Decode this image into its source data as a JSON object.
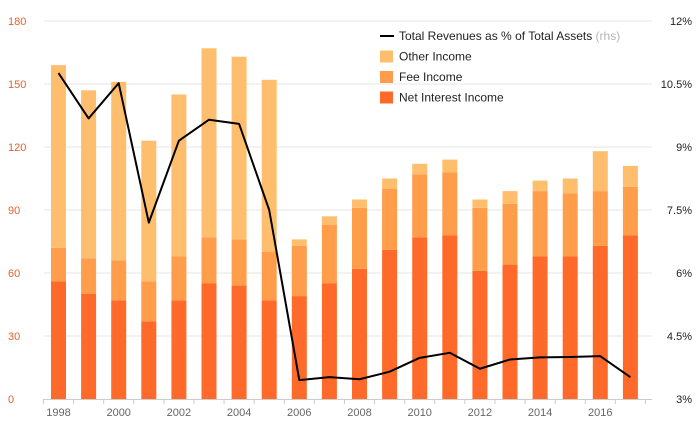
{
  "chart_data": {
    "type": "bar",
    "stacked": true,
    "x": [
      1998,
      1999,
      2000,
      2001,
      2002,
      2003,
      2004,
      2005,
      2006,
      2007,
      2008,
      2009,
      2010,
      2011,
      2012,
      2013,
      2014,
      2015,
      2016,
      2017
    ],
    "x_tick_labels": [
      "1998",
      "2000",
      "2002",
      "2004",
      "2006",
      "2008",
      "2010",
      "2012",
      "2014",
      "2016"
    ],
    "series": [
      {
        "name": "Net Interest Income",
        "type": "bar",
        "color": "#ff6a2b",
        "values": [
          56,
          50,
          47,
          37,
          47,
          55,
          54,
          47,
          49,
          55,
          62,
          71,
          77,
          78,
          61,
          64,
          68,
          68,
          73,
          78
        ]
      },
      {
        "name": "Fee Income",
        "type": "bar",
        "color": "#ff9d4a",
        "values": [
          16,
          17,
          19,
          19,
          21,
          22,
          22,
          23,
          24,
          28,
          29,
          29,
          30,
          30,
          30,
          29,
          31,
          30,
          26,
          23
        ]
      },
      {
        "name": "Other Income",
        "type": "bar",
        "color": "#ffbe6e",
        "values": [
          87,
          80,
          85,
          67,
          77,
          90,
          87,
          82,
          3,
          4,
          4,
          5,
          5,
          6,
          4,
          6,
          5,
          7,
          19,
          10
        ]
      },
      {
        "name": "Total Revenues as % of Total Assets",
        "type": "line",
        "axis": "right",
        "color": "#000000",
        "values": [
          10.76,
          9.68,
          10.52,
          7.2,
          9.15,
          9.65,
          9.55,
          7.5,
          3.45,
          3.52,
          3.47,
          3.65,
          3.98,
          4.1,
          3.72,
          3.94,
          3.99,
          4.0,
          4.02,
          3.52
        ]
      }
    ],
    "y_left": {
      "range": [
        0,
        180
      ],
      "ticks": [
        0,
        30,
        60,
        90,
        120,
        150,
        180
      ],
      "tick_labels": [
        "0",
        "30",
        "60",
        "90",
        "120",
        "150",
        "180"
      ]
    },
    "y_right": {
      "range": [
        3,
        12
      ],
      "ticks": [
        3,
        4.5,
        6,
        7.5,
        9,
        10.5,
        12
      ],
      "tick_labels": [
        "3%",
        "4.5%",
        "6%",
        "7.5%",
        "9%",
        "10.5%",
        "12%"
      ]
    },
    "legend": [
      {
        "label": "Total Revenues as % of Total Assets",
        "note": "(rhs)",
        "kind": "line",
        "color": "#000000"
      },
      {
        "label": "Other Income",
        "kind": "box",
        "color": "#ffbe6e"
      },
      {
        "label": "Fee Income",
        "kind": "box",
        "color": "#ff9d4a"
      },
      {
        "label": "Net Interest Income",
        "kind": "box",
        "color": "#ff6a2b"
      }
    ],
    "legend_position": "top-right",
    "title": "",
    "xlabel": "",
    "ylabel": "",
    "grid": true
  }
}
